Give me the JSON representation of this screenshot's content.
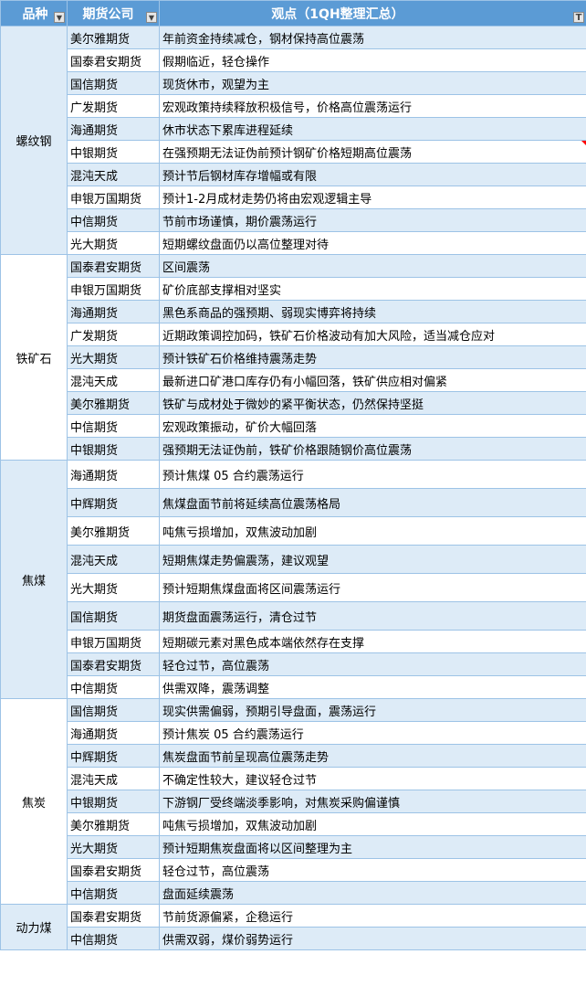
{
  "header": {
    "col_category": "品种",
    "col_company": "期货公司",
    "col_view": "观点（1QH整理汇总）",
    "filter_icon": "dropdown-arrow-icon",
    "active_filter_icon": "filter-icon"
  },
  "colors": {
    "header": "#5b9bd5",
    "band": "#ddebf7",
    "border": "#9dc3e6",
    "comment_marker": "#ff0000"
  },
  "groups": [
    {
      "category": "螺纹钢",
      "rows": [
        {
          "company": "美尔雅期货",
          "view": "年前资金持续减仓，钢材保持高位震荡"
        },
        {
          "company": "国泰君安期货",
          "view": "假期临近，轻仓操作"
        },
        {
          "company": "国信期货",
          "view": "现货休市，观望为主"
        },
        {
          "company": "广发期货",
          "view": "宏观政策持续释放积极信号，价格高位震荡运行"
        },
        {
          "company": "海通期货",
          "view": "休市状态下累库进程延续"
        },
        {
          "company": "中银期货",
          "view": "在强预期无法证伪前预计钢矿价格短期高位震荡",
          "comment": true
        },
        {
          "company": "混沌天成",
          "view": "预计节后钢材库存增幅或有限"
        },
        {
          "company": "申银万国期货",
          "view": "预计1-2月成材走势仍将由宏观逻辑主导"
        },
        {
          "company": "中信期货",
          "view": "节前市场谨慎，期价震荡运行"
        },
        {
          "company": "光大期货",
          "view": "短期螺纹盘面仍以高位整理对待"
        }
      ]
    },
    {
      "category": "铁矿石",
      "rows": [
        {
          "company": "国泰君安期货",
          "view": "区间震荡"
        },
        {
          "company": "申银万国期货",
          "view": "矿价底部支撑相对坚实"
        },
        {
          "company": "海通期货",
          "view": "黑色系商品的强预期、弱现实博弈将持续"
        },
        {
          "company": "广发期货",
          "view": "近期政策调控加码，铁矿石价格波动有加大风险，适当减仓应对"
        },
        {
          "company": "光大期货",
          "view": "预计铁矿石价格维持震荡走势"
        },
        {
          "company": "混沌天成",
          "view": "最新进口矿港口库存仍有小幅回落，铁矿供应相对偏紧"
        },
        {
          "company": "美尔雅期货",
          "view": "铁矿与成材处于微妙的紧平衡状态，仍然保持坚挺"
        },
        {
          "company": "中信期货",
          "view": "宏观政策振动，矿价大幅回落"
        },
        {
          "company": "中银期货",
          "view": "强预期无法证伪前，铁矿价格跟随钢价高位震荡"
        }
      ]
    },
    {
      "category": "焦煤",
      "rows": [
        {
          "company": "海通期货",
          "view": "预计焦煤 05 合约震荡运行"
        },
        {
          "company": "中辉期货",
          "view": "焦煤盘面节前将延续高位震荡格局"
        },
        {
          "company": "美尔雅期货",
          "view": "吨焦亏损增加，双焦波动加剧"
        },
        {
          "company": "混沌天成",
          "view": "短期焦煤走势偏震荡，建议观望"
        },
        {
          "company": "光大期货",
          "view": "预计短期焦煤盘面将区间震荡运行"
        },
        {
          "company": "国信期货",
          "view": "期货盘面震荡运行，清仓过节"
        },
        {
          "company": "申银万国期货",
          "view": "短期碳元素对黑色成本端依然存在支撑"
        },
        {
          "company": "国泰君安期货",
          "view": "轻仓过节，高位震荡"
        },
        {
          "company": "中信期货",
          "view": "供需双降，震荡调整"
        }
      ]
    },
    {
      "category": "焦炭",
      "rows": [
        {
          "company": "国信期货",
          "view": "现实供需偏弱，预期引导盘面，震荡运行"
        },
        {
          "company": "海通期货",
          "view": "预计焦炭 05 合约震荡运行"
        },
        {
          "company": "中辉期货",
          "view": "焦炭盘面节前呈现高位震荡走势"
        },
        {
          "company": "混沌天成",
          "view": "不确定性较大，建议轻仓过节"
        },
        {
          "company": "中银期货",
          "view": "下游钢厂受终端淡季影响，对焦炭采购偏谨慎"
        },
        {
          "company": "美尔雅期货",
          "view": "吨焦亏损增加，双焦波动加剧"
        },
        {
          "company": "光大期货",
          "view": "预计短期焦炭盘面将以区间整理为主"
        },
        {
          "company": "国泰君安期货",
          "view": "轻仓过节，高位震荡"
        },
        {
          "company": "中信期货",
          "view": "盘面延续震荡"
        }
      ]
    },
    {
      "category": "动力煤",
      "rows": [
        {
          "company": "国泰君安期货",
          "view": "节前货源偏紧，企稳运行"
        },
        {
          "company": "中信期货",
          "view": "供需双弱，煤价弱势运行"
        }
      ]
    }
  ]
}
